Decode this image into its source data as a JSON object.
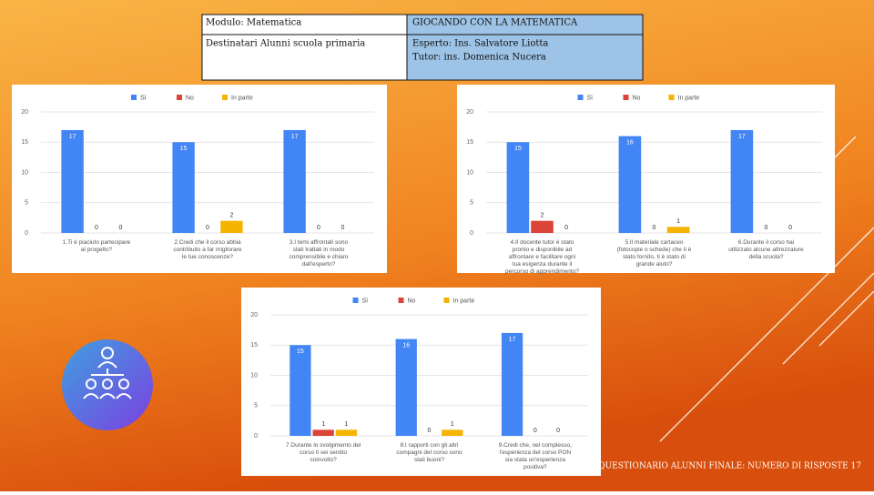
{
  "header": {
    "rows": [
      [
        "Modulo: Matematica",
        "GIOCANDO CON LA MATEMATICA"
      ],
      [
        "Destinatari   Alunni scuola primaria",
        [
          "Esperto: Ins. Salvatore Liotta",
          "Tutor: ins. Domenica Nucera"
        ]
      ]
    ]
  },
  "chart_data": [
    {
      "type": "bar",
      "categories": [
        "1.Ti è piaciuto partecipare al progetto?",
        "2.Credi che il corso abbia contribuito a far migliorare le tue conoscenze?",
        "3.I temi affrontati sono stati trattati in modo comprensibile e chiaro dall'esperto?"
      ],
      "series": [
        {
          "name": "Sì",
          "color": "#4285f4",
          "values": [
            17,
            15,
            17
          ]
        },
        {
          "name": "No",
          "color": "#db4437",
          "values": [
            0,
            0,
            0
          ]
        },
        {
          "name": "In parte",
          "color": "#f4b400",
          "values": [
            0,
            2,
            0
          ]
        }
      ],
      "ylim": [
        0,
        20
      ],
      "yticks": [
        0,
        5,
        10,
        15,
        20
      ],
      "grid": true,
      "legend": "top"
    },
    {
      "type": "bar",
      "categories": [
        "4.Il docente tutor è stato pronto e disponibile ad affrontare e facilitare ogni tua esigenza durante il percorso di apprendimento?",
        "5.Il materiale cartaceo (fotocopie o schede) che ti è stato fornito, ti è stato di grande aiuto?",
        "6.Durante il corso hai utilizzato alcune attrezzature della scuola?"
      ],
      "series": [
        {
          "name": "Sì",
          "color": "#4285f4",
          "values": [
            15,
            16,
            17
          ]
        },
        {
          "name": "No",
          "color": "#db4437",
          "values": [
            2,
            0,
            0
          ]
        },
        {
          "name": "In parte",
          "color": "#f4b400",
          "values": [
            0,
            1,
            0
          ]
        }
      ],
      "ylim": [
        0,
        20
      ],
      "yticks": [
        0,
        5,
        10,
        15,
        20
      ],
      "grid": true,
      "legend": "top"
    },
    {
      "type": "bar",
      "categories": [
        "7.Durante lo svolgimento del corso ti sei sentito coinvolto?",
        "8.I rapporti con gli altri compagni del corso sono stati buoni?",
        "9.Credi che, nel complesso, l'esperienza del corso PON sia stata un'esperienza positiva?"
      ],
      "series": [
        {
          "name": "Sì",
          "color": "#4285f4",
          "values": [
            15,
            16,
            17
          ]
        },
        {
          "name": "No",
          "color": "#db4437",
          "values": [
            1,
            0,
            0
          ]
        },
        {
          "name": "In parte",
          "color": "#f4b400",
          "values": [
            1,
            1,
            0
          ]
        }
      ],
      "ylim": [
        0,
        20
      ],
      "yticks": [
        0,
        5,
        10,
        15,
        20
      ],
      "grid": true,
      "legend": "top"
    }
  ],
  "footer": "QUESTIONARIO ALUNNI FINALE: NUMERO DI RISPOSTE 17"
}
